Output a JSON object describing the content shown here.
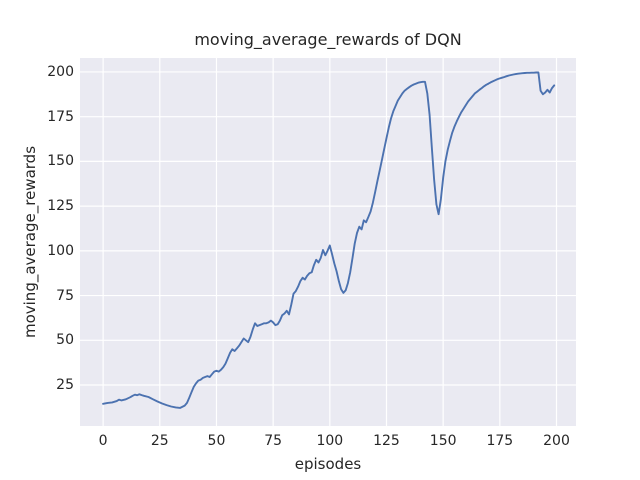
{
  "figure": {
    "title": "moving_average_rewards of DQN",
    "xlabel": "episodes",
    "ylabel": "moving_average_rewards"
  },
  "chart_data": {
    "type": "line",
    "title": "moving_average_rewards of DQN",
    "xlabel": "episodes",
    "ylabel": "moving_average_rewards",
    "x_ticks": [
      0,
      25,
      50,
      75,
      100,
      125,
      150,
      175,
      200
    ],
    "y_ticks": [
      25,
      50,
      75,
      100,
      125,
      150,
      175,
      200
    ],
    "xlim": [
      -10.2,
      208.6
    ],
    "ylim": [
      2.1,
      207.8
    ],
    "grid": true,
    "legend": false,
    "style": {
      "line_color": "#4c72b0",
      "plot_bg": "#eaeaf2",
      "grid_color": "#ffffff",
      "text_color": "#262626",
      "figure_bg": "#ffffff",
      "line_width": 1.9
    },
    "series": [
      {
        "name": "moving_average_rewards",
        "points": [
          [
            0,
            14.5
          ],
          [
            2,
            15
          ],
          [
            4,
            15.3
          ],
          [
            6,
            16
          ],
          [
            7,
            16.8
          ],
          [
            8,
            16.4
          ],
          [
            10,
            17
          ],
          [
            12,
            18.2
          ],
          [
            13,
            19
          ],
          [
            14,
            19.6
          ],
          [
            15,
            19.3
          ],
          [
            16,
            19.8
          ],
          [
            17,
            19.4
          ],
          [
            18,
            19
          ],
          [
            20,
            18.3
          ],
          [
            22,
            17
          ],
          [
            24,
            15.8
          ],
          [
            26,
            14.7
          ],
          [
            28,
            13.8
          ],
          [
            30,
            13
          ],
          [
            32,
            12.5
          ],
          [
            34,
            12.2
          ],
          [
            36,
            13.5
          ],
          [
            37,
            15
          ],
          [
            38,
            18
          ],
          [
            39,
            21
          ],
          [
            40,
            24
          ],
          [
            41,
            26
          ],
          [
            42,
            27.5
          ],
          [
            43,
            28
          ],
          [
            44,
            29
          ],
          [
            45,
            29.5
          ],
          [
            46,
            30
          ],
          [
            47,
            29.5
          ],
          [
            48,
            31
          ],
          [
            49,
            32.5
          ],
          [
            50,
            33
          ],
          [
            51,
            32.5
          ],
          [
            52,
            33.5
          ],
          [
            53,
            35
          ],
          [
            54,
            37
          ],
          [
            55,
            40
          ],
          [
            56,
            43
          ],
          [
            57,
            45
          ],
          [
            58,
            44
          ],
          [
            59,
            45.5
          ],
          [
            60,
            47
          ],
          [
            61,
            49
          ],
          [
            62,
            51
          ],
          [
            63,
            50
          ],
          [
            64,
            49
          ],
          [
            65,
            52
          ],
          [
            66,
            56
          ],
          [
            67,
            59.5
          ],
          [
            68,
            58
          ],
          [
            69,
            58.5
          ],
          [
            70,
            59
          ],
          [
            71,
            59.5
          ],
          [
            72,
            59.5
          ],
          [
            73,
            60
          ],
          [
            74,
            61
          ],
          [
            75,
            60
          ],
          [
            76,
            58.5
          ],
          [
            77,
            59
          ],
          [
            78,
            61
          ],
          [
            79,
            64
          ],
          [
            80,
            65
          ],
          [
            81,
            66.5
          ],
          [
            82,
            64.5
          ],
          [
            83,
            70
          ],
          [
            84,
            76
          ],
          [
            85,
            77.5
          ],
          [
            86,
            80
          ],
          [
            87,
            83
          ],
          [
            88,
            85
          ],
          [
            89,
            84
          ],
          [
            90,
            86
          ],
          [
            91,
            87.5
          ],
          [
            92,
            88
          ],
          [
            93,
            92
          ],
          [
            94,
            95
          ],
          [
            95,
            93.5
          ],
          [
            96,
            96
          ],
          [
            97,
            100.5
          ],
          [
            98,
            97.5
          ],
          [
            99,
            100
          ],
          [
            100,
            103
          ],
          [
            101,
            98
          ],
          [
            102,
            93
          ],
          [
            103,
            88.5
          ],
          [
            104,
            83
          ],
          [
            105,
            78.5
          ],
          [
            106,
            76.5
          ],
          [
            107,
            78
          ],
          [
            108,
            82
          ],
          [
            109,
            88
          ],
          [
            110,
            96
          ],
          [
            111,
            104
          ],
          [
            112,
            110
          ],
          [
            113,
            113.5
          ],
          [
            114,
            112
          ],
          [
            115,
            117
          ],
          [
            116,
            116
          ],
          [
            117,
            119
          ],
          [
            118,
            122
          ],
          [
            119,
            127
          ],
          [
            120,
            133
          ],
          [
            121,
            139
          ],
          [
            122,
            145
          ],
          [
            123,
            151
          ],
          [
            124,
            157
          ],
          [
            125,
            163
          ],
          [
            126,
            169
          ],
          [
            127,
            174
          ],
          [
            128,
            178
          ],
          [
            129,
            181
          ],
          [
            130,
            184
          ],
          [
            131,
            186
          ],
          [
            132,
            188
          ],
          [
            133,
            189.5
          ],
          [
            134,
            190.5
          ],
          [
            135,
            191.5
          ],
          [
            136,
            192.3
          ],
          [
            137,
            193
          ],
          [
            138,
            193.5
          ],
          [
            139,
            194
          ],
          [
            140,
            194.3
          ],
          [
            141,
            194.5
          ],
          [
            142,
            194.5
          ],
          [
            143,
            188
          ],
          [
            144,
            176
          ],
          [
            145,
            158
          ],
          [
            146,
            140
          ],
          [
            147,
            126
          ],
          [
            148,
            120.5
          ],
          [
            149,
            129
          ],
          [
            150,
            141
          ],
          [
            151,
            150
          ],
          [
            152,
            156.5
          ],
          [
            153,
            161.5
          ],
          [
            154,
            166
          ],
          [
            155,
            169.5
          ],
          [
            156,
            172.5
          ],
          [
            157,
            175
          ],
          [
            158,
            177.5
          ],
          [
            159,
            179.5
          ],
          [
            160,
            181.5
          ],
          [
            161,
            183.5
          ],
          [
            162,
            185
          ],
          [
            163,
            186.5
          ],
          [
            164,
            188
          ],
          [
            165,
            189
          ],
          [
            166,
            190
          ],
          [
            167,
            191
          ],
          [
            168,
            192
          ],
          [
            169,
            192.8
          ],
          [
            170,
            193.5
          ],
          [
            171,
            194.2
          ],
          [
            172,
            194.8
          ],
          [
            173,
            195.4
          ],
          [
            174,
            196
          ],
          [
            175,
            196.4
          ],
          [
            176,
            196.8
          ],
          [
            177,
            197.2
          ],
          [
            178,
            197.6
          ],
          [
            179,
            198
          ],
          [
            180,
            198.3
          ],
          [
            181,
            198.6
          ],
          [
            182,
            198.8
          ],
          [
            183,
            199
          ],
          [
            184,
            199.2
          ],
          [
            185,
            199.3
          ],
          [
            186,
            199.4
          ],
          [
            187,
            199.5
          ],
          [
            188,
            199.5
          ],
          [
            189,
            199.6
          ],
          [
            190,
            199.6
          ],
          [
            191,
            199.7
          ],
          [
            192,
            199.7
          ],
          [
            193,
            189.5
          ],
          [
            194,
            187.5
          ],
          [
            195,
            188.5
          ],
          [
            196,
            190
          ],
          [
            197,
            188.5
          ],
          [
            198,
            191
          ],
          [
            199,
            192.5
          ]
        ]
      }
    ]
  }
}
